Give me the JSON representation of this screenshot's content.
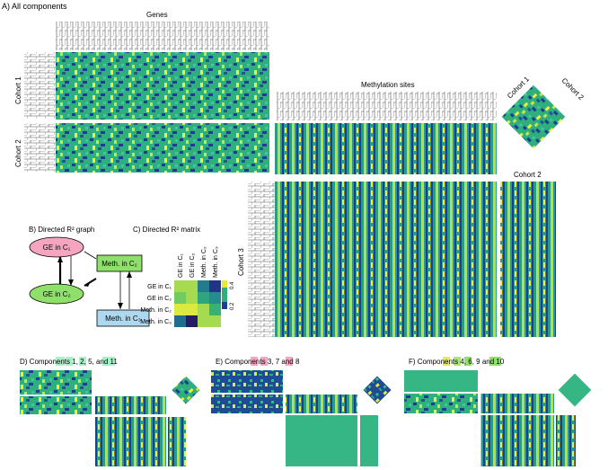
{
  "panel_a": {
    "title": "A) All components",
    "genes_label": "Genes",
    "methylation_label": "Methylation sites",
    "cohort1_label": "Cohort 1",
    "cohort2_label": "Cohort 2",
    "cohort3_label": "Cohort 3",
    "diamond_cohort1": "Cohort 1",
    "diamond_cohort2": "Cohort 2",
    "right_cohort2": "Cohort 2"
  },
  "panel_b": {
    "title": "B) Directed R² graph",
    "nodes": [
      "GE in C₁",
      "Meth. in C₂",
      "GE in C₂",
      "Meth. in C₃"
    ],
    "node_colors": [
      "#f6a5c0",
      "#8ee06b",
      "#8ee06b",
      "#aed8ef"
    ]
  },
  "panel_c": {
    "title": "C) Directed R² matrix",
    "rows": [
      "GE in C₁",
      "GE in C₂",
      "Meth. in C₂",
      "Meth. in C₃"
    ],
    "cols": [
      "GE in C₁",
      "GE in C₂",
      "Meth. in C₂",
      "Meth. in C₃"
    ],
    "values": [
      [
        0.42,
        0.42,
        0.28,
        0.18
      ],
      [
        0.4,
        0.42,
        0.34,
        0.3
      ],
      [
        0.44,
        0.44,
        0.42,
        0.36
      ],
      [
        0.26,
        0.12,
        0.42,
        0.42
      ]
    ],
    "colorbar_ticks": [
      "0.4",
      "0.2"
    ]
  },
  "panel_d": {
    "prefix": "D) Components ",
    "c1": "1",
    "sep1": ", ",
    "c2": "2",
    "sep2": ", ",
    "c3": "5",
    "sep3": ", and ",
    "c4": "11",
    "highlight": "#a8f0c8"
  },
  "panel_e": {
    "prefix": "E) Components ",
    "c1": "3",
    "sep1": ", ",
    "c2": "7",
    "sep2": " and ",
    "c3": "8",
    "highlight": "#f4a6bf"
  },
  "panel_f": {
    "prefix": "F) Components ",
    "c1": "4",
    "sep1": ", ",
    "c2": "6",
    "sep2": ", ",
    "c3": "9",
    "sep3": " and ",
    "c4": "10",
    "highlight": "#e4e86a"
  },
  "colors": {
    "viridis_low": "#1a2f8f",
    "viridis_mid": "#2fb37f",
    "viridis_high": "#f5f23a"
  }
}
